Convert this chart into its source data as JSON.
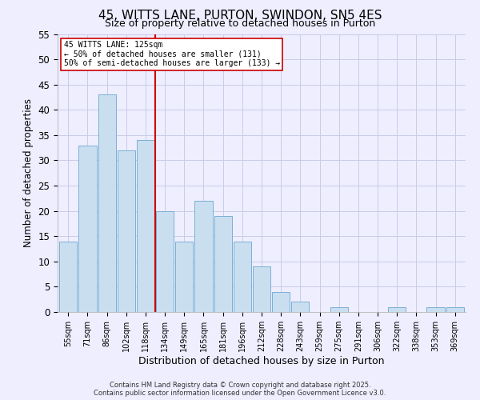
{
  "title": "45, WITTS LANE, PURTON, SWINDON, SN5 4ES",
  "subtitle": "Size of property relative to detached houses in Purton",
  "xlabel": "Distribution of detached houses by size in Purton",
  "ylabel": "Number of detached properties",
  "categories": [
    "55sqm",
    "71sqm",
    "86sqm",
    "102sqm",
    "118sqm",
    "134sqm",
    "149sqm",
    "165sqm",
    "181sqm",
    "196sqm",
    "212sqm",
    "228sqm",
    "243sqm",
    "259sqm",
    "275sqm",
    "291sqm",
    "306sqm",
    "322sqm",
    "338sqm",
    "353sqm",
    "369sqm"
  ],
  "values": [
    14,
    33,
    43,
    32,
    34,
    20,
    14,
    22,
    19,
    14,
    9,
    4,
    2,
    0,
    1,
    0,
    0,
    1,
    0,
    1,
    1
  ],
  "bar_color": "#c9dff0",
  "bar_edge_color": "#7bafd4",
  "vline_position": 4.5,
  "vline_color": "#cc0000",
  "ylim": [
    0,
    55
  ],
  "yticks": [
    0,
    5,
    10,
    15,
    20,
    25,
    30,
    35,
    40,
    45,
    50,
    55
  ],
  "annotation_title": "45 WITTS LANE: 125sqm",
  "annotation_line1": "← 50% of detached houses are smaller (131)",
  "annotation_line2": "50% of semi-detached houses are larger (133) →",
  "background_color": "#eeeeff",
  "grid_color": "#c8cce8",
  "footnote1": "Contains HM Land Registry data © Crown copyright and database right 2025.",
  "footnote2": "Contains public sector information licensed under the Open Government Licence v3.0."
}
